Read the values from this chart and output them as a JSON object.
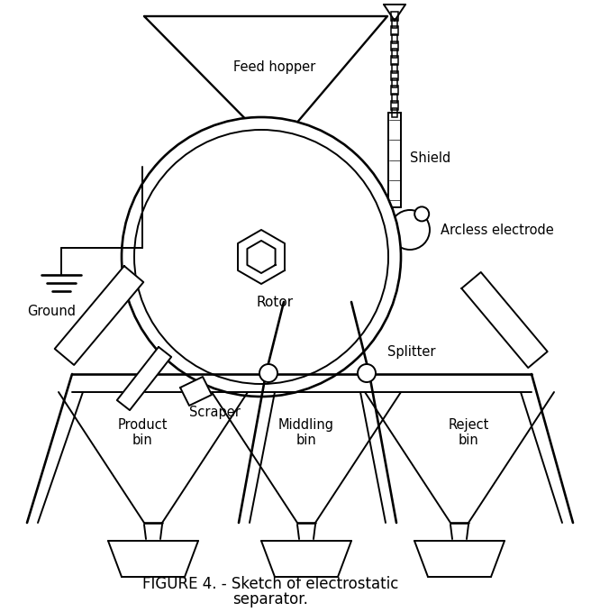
{
  "title_line1": "FIGURE 4. - Sketch of electrostatic",
  "title_line2": "separator.",
  "bg_color": "#ffffff",
  "line_color": "#000000",
  "lw": 1.4,
  "fig_width": 6.66,
  "fig_height": 6.79,
  "labels": {
    "feed_hopper": "Feed hopper",
    "shield": "Shield",
    "arcless_electrode": "Arcless electrode",
    "ground": "Ground",
    "rotor": "Rotor",
    "scraper": "Scraper",
    "splitter": "Splitter",
    "product_bin": "Product\nbin",
    "middling_bin": "Middling\nbin",
    "reject_bin": "Reject\nbin"
  }
}
